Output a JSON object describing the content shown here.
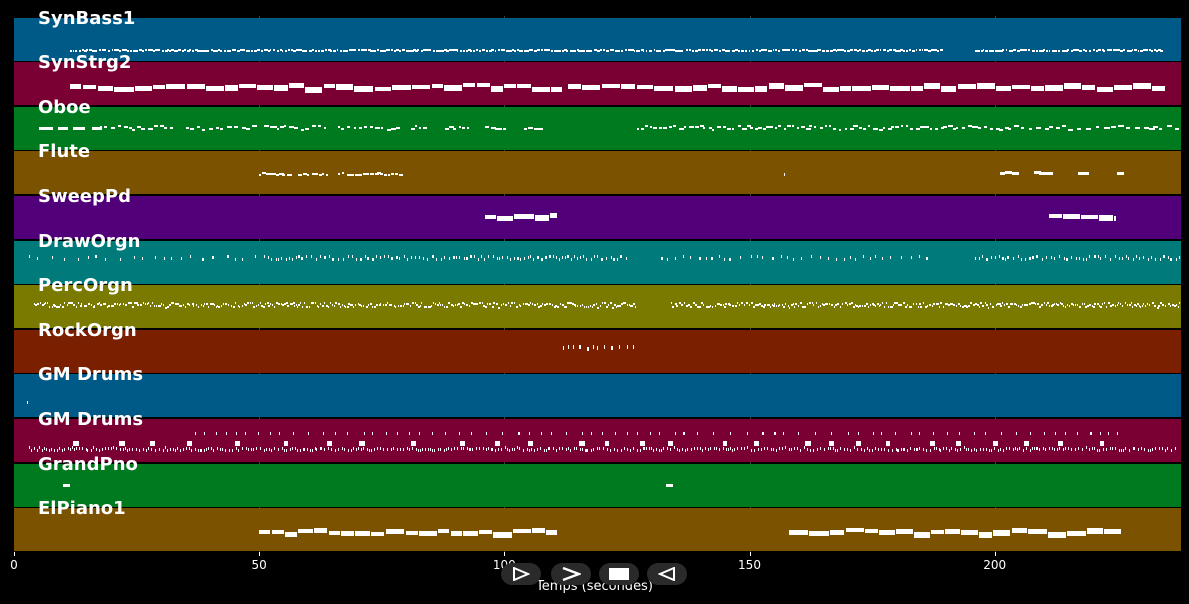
{
  "timeline": {
    "tracks": [
      {
        "name": "SynBass1",
        "color": "#005a87",
        "pattern": "bass"
      },
      {
        "name": "SynStrg2",
        "color": "#7a0033",
        "pattern": "strings"
      },
      {
        "name": "Oboe",
        "color": "#007a1f",
        "pattern": "oboe"
      },
      {
        "name": "Flute",
        "color": "#7a5200",
        "pattern": "flute"
      },
      {
        "name": "SweepPd",
        "color": "#52007a",
        "pattern": "sweep"
      },
      {
        "name": "DrawOrgn",
        "color": "#007a7a",
        "pattern": "draworgn"
      },
      {
        "name": "PercOrgn",
        "color": "#7a7a00",
        "pattern": "percorgn"
      },
      {
        "name": "RockOrgn",
        "color": "#7a1f00",
        "pattern": "rockorgn"
      },
      {
        "name": "GM Drums",
        "color": "#005a87",
        "pattern": "drums1"
      },
      {
        "name": "GM Drums",
        "color": "#7a0033",
        "pattern": "drums2"
      },
      {
        "name": "GrandPno",
        "color": "#007a1f",
        "pattern": "piano"
      },
      {
        "name": "ElPiano1",
        "color": "#7a5200",
        "pattern": "epiano"
      }
    ],
    "time_max": 238,
    "x_ticks": [
      "0",
      "50",
      "100",
      "150",
      "200"
    ],
    "x_axis_title": "Temps (secondes)"
  },
  "controls": {
    "buttons": [
      {
        "name": "play-button",
        "icon": "play-icon"
      },
      {
        "name": "fast-forward-button",
        "icon": "forward-icon"
      },
      {
        "name": "stop-button",
        "icon": "stop-icon"
      },
      {
        "name": "rewind-button",
        "icon": "back-icon"
      }
    ]
  }
}
